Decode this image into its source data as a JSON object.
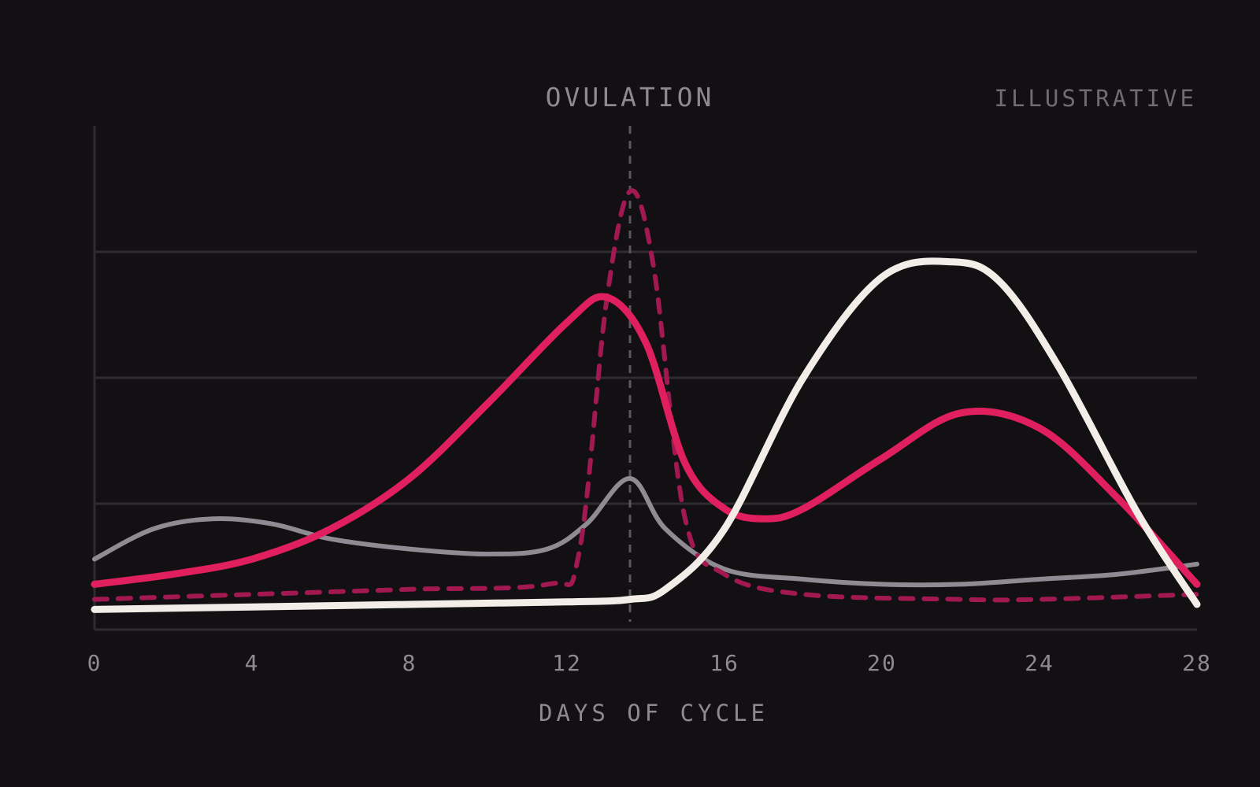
{
  "annotations": {
    "ovulation_label": "OVULATION",
    "ovulation_day": 13.6,
    "corner_label": "ILLUSTRATIVE"
  },
  "chart_data": {
    "type": "line",
    "title": "",
    "xlabel": "DAYS OF CYCLE",
    "ylabel": "",
    "xlim": [
      0,
      28
    ],
    "ylim": [
      0,
      1
    ],
    "x_ticks": [
      0,
      4,
      8,
      12,
      16,
      20,
      24,
      28
    ],
    "x_tick_labels": [
      "0",
      "4",
      "8",
      "12",
      "16",
      "20",
      "24",
      "28"
    ],
    "y_gridlines": [
      0.25,
      0.5,
      0.75
    ],
    "grid": "horizontal",
    "legend": "none",
    "series": [
      {
        "color": "#e01f5e",
        "style": "solid",
        "x": [
          0,
          2,
          4,
          6,
          8,
          10,
          12,
          13,
          14,
          15,
          16,
          17,
          18,
          20,
          22,
          24,
          26,
          28
        ],
        "y": [
          0.09,
          0.11,
          0.14,
          0.2,
          0.3,
          0.45,
          0.61,
          0.66,
          0.57,
          0.33,
          0.24,
          0.22,
          0.24,
          0.34,
          0.43,
          0.4,
          0.26,
          0.09
        ]
      },
      {
        "color": "#a11950",
        "style": "dashed",
        "x": [
          0,
          4,
          8,
          11.5,
          12.3,
          13,
          13.6,
          14.2,
          15,
          16,
          18,
          22,
          24,
          28
        ],
        "y": [
          0.06,
          0.07,
          0.08,
          0.09,
          0.15,
          0.65,
          0.87,
          0.72,
          0.22,
          0.11,
          0.07,
          0.06,
          0.06,
          0.07
        ]
      },
      {
        "color": "#8e8b92",
        "style": "solid",
        "x": [
          0,
          1.5,
          3,
          4.5,
          6,
          8,
          10,
          11.5,
          12.5,
          13.6,
          14.5,
          16,
          18,
          20,
          22,
          24,
          26,
          28
        ],
        "y": [
          0.14,
          0.2,
          0.22,
          0.21,
          0.18,
          0.16,
          0.15,
          0.16,
          0.21,
          0.3,
          0.2,
          0.12,
          0.1,
          0.09,
          0.09,
          0.1,
          0.11,
          0.13
        ]
      },
      {
        "color": "#f2ede6",
        "style": "solid",
        "x": [
          0,
          4,
          8,
          12,
          13.6,
          14.5,
          16,
          18,
          20,
          21.8,
          23,
          24.5,
          26.5,
          28
        ],
        "y": [
          0.04,
          0.045,
          0.05,
          0.055,
          0.06,
          0.08,
          0.2,
          0.5,
          0.7,
          0.73,
          0.69,
          0.52,
          0.23,
          0.05
        ]
      }
    ]
  }
}
